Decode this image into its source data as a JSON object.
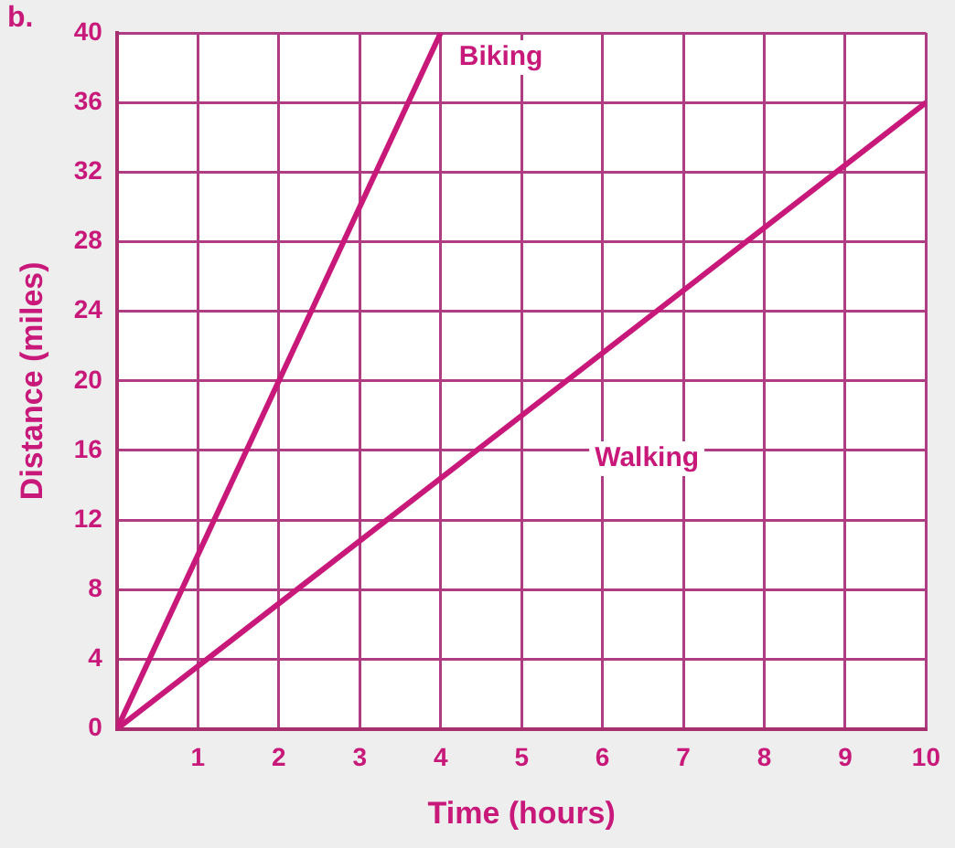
{
  "chart_data": {
    "type": "line",
    "xlabel": "Time (hours)",
    "ylabel": "Distance (miles)",
    "annotations": [
      "b."
    ],
    "series": [
      {
        "name": "Biking",
        "color": "#c8197a",
        "x": [
          0,
          4
        ],
        "values": [
          0,
          40
        ]
      },
      {
        "name": "Walking",
        "color": "#c8197a",
        "x": [
          0,
          10
        ],
        "values": [
          0,
          36
        ]
      }
    ],
    "xlim": [
      0,
      10
    ],
    "xticks": [
      {
        "value": 0,
        "label": null
      },
      1,
      2,
      3,
      4,
      5,
      6,
      7,
      8,
      9,
      10
    ],
    "ylim": [
      0,
      40
    ],
    "yticks": [
      0,
      4,
      8,
      12,
      16,
      20,
      24,
      28,
      32,
      36,
      40
    ],
    "grid": true,
    "legend": false,
    "marker": "none",
    "line_style": "solid"
  }
}
